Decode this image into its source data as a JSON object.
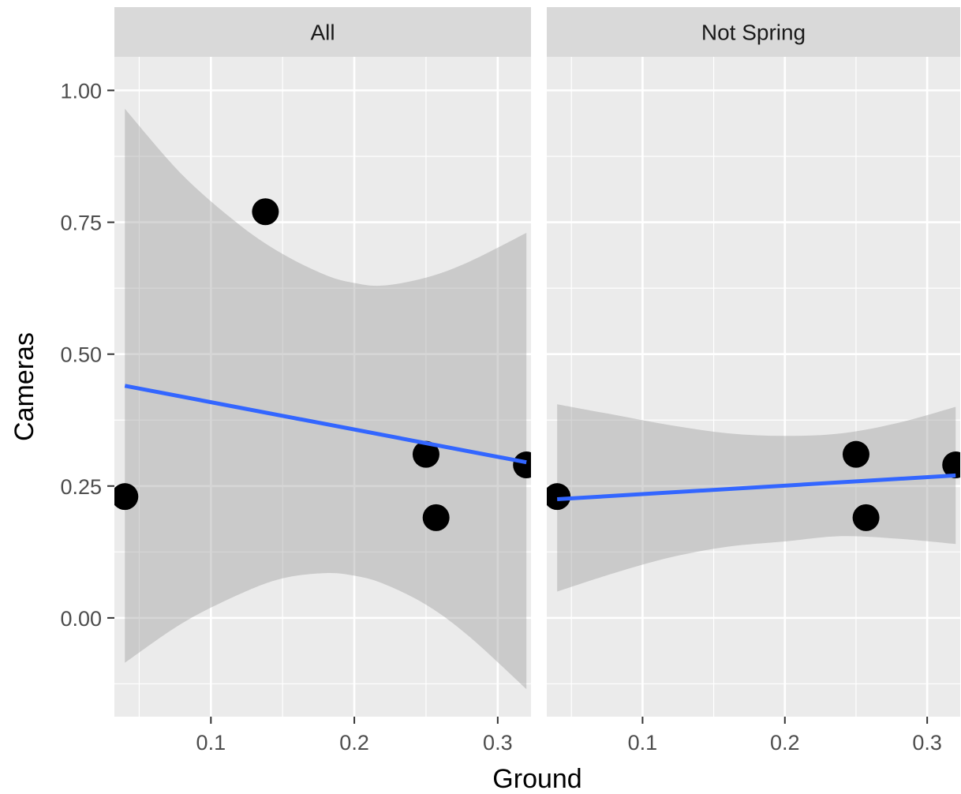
{
  "chart_data": {
    "type": "scatter",
    "xlabel": "Ground",
    "ylabel": "Cameras",
    "xlim": [
      0.0327,
      0.3232
    ],
    "ylim": [
      -0.1872,
      1.0636
    ],
    "x_ticks": [
      0.1,
      0.2,
      0.3
    ],
    "x_tick_labels": [
      "0.1",
      "0.2",
      "0.3"
    ],
    "y_ticks": [
      0.0,
      0.25,
      0.5,
      0.75,
      1.0
    ],
    "y_tick_labels": [
      "0.00",
      "0.25",
      "0.50",
      "0.75",
      "1.00"
    ],
    "grid": true,
    "colors": {
      "panel_bg": "#ebebeb",
      "strip_bg": "#d9d9d9",
      "grid": "#ffffff",
      "ribbon": "#999999",
      "fit_line": "#3366ff",
      "point": "#000000"
    },
    "panels": [
      {
        "strip_label": "All",
        "points": [
          {
            "x": 0.04,
            "y": 0.23
          },
          {
            "x": 0.138,
            "y": 0.77
          },
          {
            "x": 0.25,
            "y": 0.31
          },
          {
            "x": 0.257,
            "y": 0.19
          },
          {
            "x": 0.32,
            "y": 0.29
          }
        ],
        "fit_line": [
          {
            "x": 0.04,
            "y": 0.44
          },
          {
            "x": 0.32,
            "y": 0.295
          }
        ],
        "ribbon": [
          {
            "x": 0.04,
            "upper": 0.965,
            "lower": -0.085
          },
          {
            "x": 0.08,
            "upper": 0.84,
            "lower": -0.01
          },
          {
            "x": 0.12,
            "upper": 0.745,
            "lower": 0.045
          },
          {
            "x": 0.15,
            "upper": 0.69,
            "lower": 0.075
          },
          {
            "x": 0.18,
            "upper": 0.65,
            "lower": 0.085
          },
          {
            "x": 0.2,
            "upper": 0.635,
            "lower": 0.08
          },
          {
            "x": 0.22,
            "upper": 0.63,
            "lower": 0.065
          },
          {
            "x": 0.25,
            "upper": 0.645,
            "lower": 0.025
          },
          {
            "x": 0.28,
            "upper": 0.675,
            "lower": -0.035
          },
          {
            "x": 0.32,
            "upper": 0.73,
            "lower": -0.135
          }
        ]
      },
      {
        "strip_label": "Not Spring",
        "points": [
          {
            "x": 0.04,
            "y": 0.23
          },
          {
            "x": 0.25,
            "y": 0.31
          },
          {
            "x": 0.257,
            "y": 0.19
          },
          {
            "x": 0.32,
            "y": 0.29
          }
        ],
        "fit_line": [
          {
            "x": 0.04,
            "y": 0.225
          },
          {
            "x": 0.32,
            "y": 0.27
          }
        ],
        "ribbon": [
          {
            "x": 0.04,
            "upper": 0.405,
            "lower": 0.05
          },
          {
            "x": 0.08,
            "upper": 0.385,
            "lower": 0.085
          },
          {
            "x": 0.12,
            "upper": 0.365,
            "lower": 0.115
          },
          {
            "x": 0.16,
            "upper": 0.35,
            "lower": 0.135
          },
          {
            "x": 0.2,
            "upper": 0.345,
            "lower": 0.145
          },
          {
            "x": 0.24,
            "upper": 0.35,
            "lower": 0.155
          },
          {
            "x": 0.28,
            "upper": 0.37,
            "lower": 0.15
          },
          {
            "x": 0.32,
            "upper": 0.4,
            "lower": 0.14
          }
        ]
      }
    ]
  }
}
